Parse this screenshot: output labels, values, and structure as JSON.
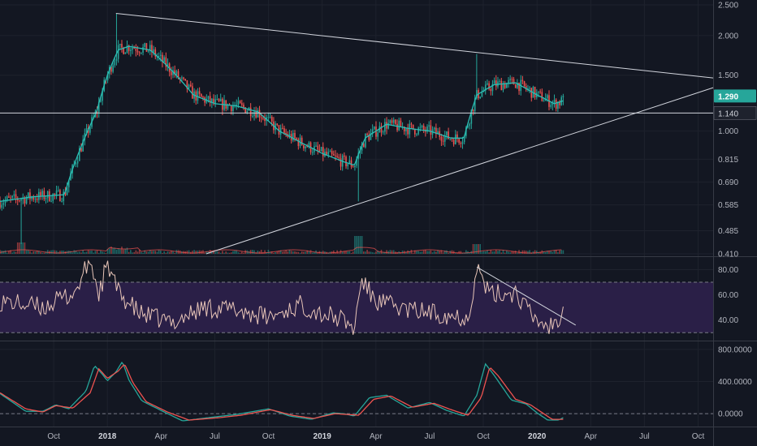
{
  "colors": {
    "background": "#131722",
    "grid": "#1e222d",
    "up": "#26a69a",
    "down": "#ef5350",
    "ma": "#2bbfb5",
    "trendline": "#d1d4dc",
    "rsi_line": "#e8c5b8",
    "rsi_band": "#2a1f47",
    "macd": "#26a69a",
    "signal": "#ef5350",
    "price_tag": "#26a69a",
    "level_tag": "#1e222d"
  },
  "chart_data": [
    {
      "type": "candlestick",
      "panel": "price",
      "y_scale": "log",
      "ylim": [
        0.41,
        2.5
      ],
      "yticks": [
        "2.500",
        "2.000",
        "1.500",
        "1.000",
        "0.815",
        "0.690",
        "0.585",
        "0.485",
        "0.410"
      ],
      "ytick_values": [
        2.5,
        2.0,
        1.5,
        1.0,
        0.815,
        0.69,
        0.585,
        0.485,
        0.41
      ],
      "current_price_label": "1.290",
      "current_price": 1.29,
      "horizontal_level_label": "1.140",
      "horizontal_level": 1.14,
      "xticks": [
        "Oct",
        "2018",
        "Apr",
        "Jul",
        "Oct",
        "2019",
        "Apr",
        "Jul",
        "Oct",
        "2020",
        "Apr",
        "Jul",
        "Oct"
      ],
      "xtick_times": [
        2017.75,
        2018.0,
        2018.25,
        2018.5,
        2018.75,
        2019.0,
        2019.25,
        2019.5,
        2019.75,
        2020.0,
        2020.25,
        2020.5,
        2020.75
      ],
      "xlim": [
        2017.5,
        2020.82
      ],
      "ma_anchors": [
        [
          2017.5,
          0.6
        ],
        [
          2017.65,
          0.62
        ],
        [
          2017.8,
          0.63
        ],
        [
          2017.88,
          0.9
        ],
        [
          2017.95,
          1.15
        ],
        [
          2018.0,
          1.5
        ],
        [
          2018.05,
          1.8
        ],
        [
          2018.1,
          1.85
        ],
        [
          2018.2,
          1.8
        ],
        [
          2018.3,
          1.55
        ],
        [
          2018.4,
          1.3
        ],
        [
          2018.5,
          1.22
        ],
        [
          2018.6,
          1.2
        ],
        [
          2018.7,
          1.15
        ],
        [
          2018.8,
          1.0
        ],
        [
          2018.9,
          0.92
        ],
        [
          2019.0,
          0.85
        ],
        [
          2019.1,
          0.8
        ],
        [
          2019.15,
          0.78
        ],
        [
          2019.2,
          0.95
        ],
        [
          2019.3,
          1.05
        ],
        [
          2019.4,
          1.02
        ],
        [
          2019.5,
          1.0
        ],
        [
          2019.6,
          0.95
        ],
        [
          2019.66,
          0.95
        ],
        [
          2019.72,
          1.3
        ],
        [
          2019.8,
          1.4
        ],
        [
          2019.9,
          1.42
        ],
        [
          2020.0,
          1.3
        ],
        [
          2020.08,
          1.22
        ],
        [
          2020.13,
          1.25
        ]
      ],
      "trendlines": [
        {
          "name": "upper",
          "from": [
            2018.04,
            2.35
          ],
          "to": [
            2020.82,
            1.47
          ]
        },
        {
          "name": "lower",
          "from": [
            2018.46,
            0.41
          ],
          "to": [
            2020.82,
            1.37
          ]
        }
      ]
    },
    {
      "type": "line",
      "panel": "rsi",
      "ylim": [
        25,
        88
      ],
      "yticks": [
        "80.00",
        "60.00",
        "40.00"
      ],
      "ytick_values": [
        80,
        60,
        40
      ],
      "band": [
        30,
        70
      ],
      "anchors": [
        [
          2017.5,
          55
        ],
        [
          2017.7,
          50
        ],
        [
          2017.85,
          62
        ],
        [
          2017.92,
          88
        ],
        [
          2017.96,
          60
        ],
        [
          2018.0,
          85
        ],
        [
          2018.05,
          62
        ],
        [
          2018.15,
          45
        ],
        [
          2018.3,
          38
        ],
        [
          2018.45,
          50
        ],
        [
          2018.6,
          48
        ],
        [
          2018.75,
          42
        ],
        [
          2018.9,
          52
        ],
        [
          2019.0,
          45
        ],
        [
          2019.1,
          40
        ],
        [
          2019.15,
          32
        ],
        [
          2019.18,
          72
        ],
        [
          2019.25,
          55
        ],
        [
          2019.4,
          48
        ],
        [
          2019.55,
          45
        ],
        [
          2019.68,
          42
        ],
        [
          2019.72,
          82
        ],
        [
          2019.78,
          60
        ],
        [
          2019.9,
          62
        ],
        [
          2019.98,
          42
        ],
        [
          2020.05,
          35
        ],
        [
          2020.1,
          40
        ],
        [
          2020.13,
          62
        ]
      ],
      "trendlines": [
        {
          "name": "rsi-downtrend",
          "from": [
            2019.72,
            82
          ],
          "to": [
            2020.18,
            36
          ]
        }
      ]
    },
    {
      "type": "line",
      "panel": "macd",
      "ylim": [
        -120,
        870
      ],
      "yticks": [
        "800.0000",
        "400.0000",
        "0.0000"
      ],
      "ytick_values": [
        800,
        400,
        0
      ],
      "series": [
        {
          "name": "",
          "color_key": "macd",
          "anchors": [
            [
              2017.5,
              250
            ],
            [
              2017.62,
              30
            ],
            [
              2017.7,
              30
            ],
            [
              2017.76,
              110
            ],
            [
              2017.82,
              60
            ],
            [
              2017.9,
              280
            ],
            [
              2017.94,
              600
            ],
            [
              2017.98,
              480
            ],
            [
              2018.0,
              410
            ],
            [
              2018.04,
              520
            ],
            [
              2018.07,
              650
            ],
            [
              2018.1,
              420
            ],
            [
              2018.16,
              160
            ],
            [
              2018.25,
              40
            ],
            [
              2018.35,
              -90
            ],
            [
              2018.5,
              -40
            ],
            [
              2018.6,
              -10
            ],
            [
              2018.75,
              60
            ],
            [
              2018.85,
              -30
            ],
            [
              2018.95,
              -70
            ],
            [
              2019.05,
              10
            ],
            [
              2019.1,
              0
            ],
            [
              2019.15,
              -30
            ],
            [
              2019.22,
              200
            ],
            [
              2019.3,
              230
            ],
            [
              2019.4,
              70
            ],
            [
              2019.5,
              140
            ],
            [
              2019.58,
              40
            ],
            [
              2019.66,
              -30
            ],
            [
              2019.72,
              230
            ],
            [
              2019.76,
              620
            ],
            [
              2019.8,
              480
            ],
            [
              2019.88,
              170
            ],
            [
              2019.95,
              120
            ],
            [
              2020.0,
              10
            ],
            [
              2020.05,
              -80
            ],
            [
              2020.1,
              -80
            ],
            [
              2020.13,
              -40
            ]
          ]
        },
        {
          "name": "",
          "color_key": "signal",
          "anchors": [
            [
              2017.5,
              260
            ],
            [
              2017.62,
              60
            ],
            [
              2017.7,
              20
            ],
            [
              2017.76,
              100
            ],
            [
              2017.84,
              70
            ],
            [
              2017.92,
              260
            ],
            [
              2017.96,
              560
            ],
            [
              2018.0,
              440
            ],
            [
              2018.05,
              530
            ],
            [
              2018.08,
              620
            ],
            [
              2018.12,
              380
            ],
            [
              2018.18,
              150
            ],
            [
              2018.28,
              20
            ],
            [
              2018.38,
              -80
            ],
            [
              2018.52,
              -50
            ],
            [
              2018.62,
              -20
            ],
            [
              2018.76,
              50
            ],
            [
              2018.86,
              -20
            ],
            [
              2018.96,
              -60
            ],
            [
              2019.06,
              0
            ],
            [
              2019.12,
              -10
            ],
            [
              2019.17,
              -20
            ],
            [
              2019.24,
              180
            ],
            [
              2019.32,
              220
            ],
            [
              2019.42,
              80
            ],
            [
              2019.52,
              130
            ],
            [
              2019.6,
              50
            ],
            [
              2019.68,
              -20
            ],
            [
              2019.74,
              200
            ],
            [
              2019.78,
              580
            ],
            [
              2019.82,
              470
            ],
            [
              2019.9,
              180
            ],
            [
              2019.97,
              110
            ],
            [
              2020.02,
              20
            ],
            [
              2020.07,
              -70
            ],
            [
              2020.12,
              -70
            ]
          ]
        }
      ]
    }
  ]
}
